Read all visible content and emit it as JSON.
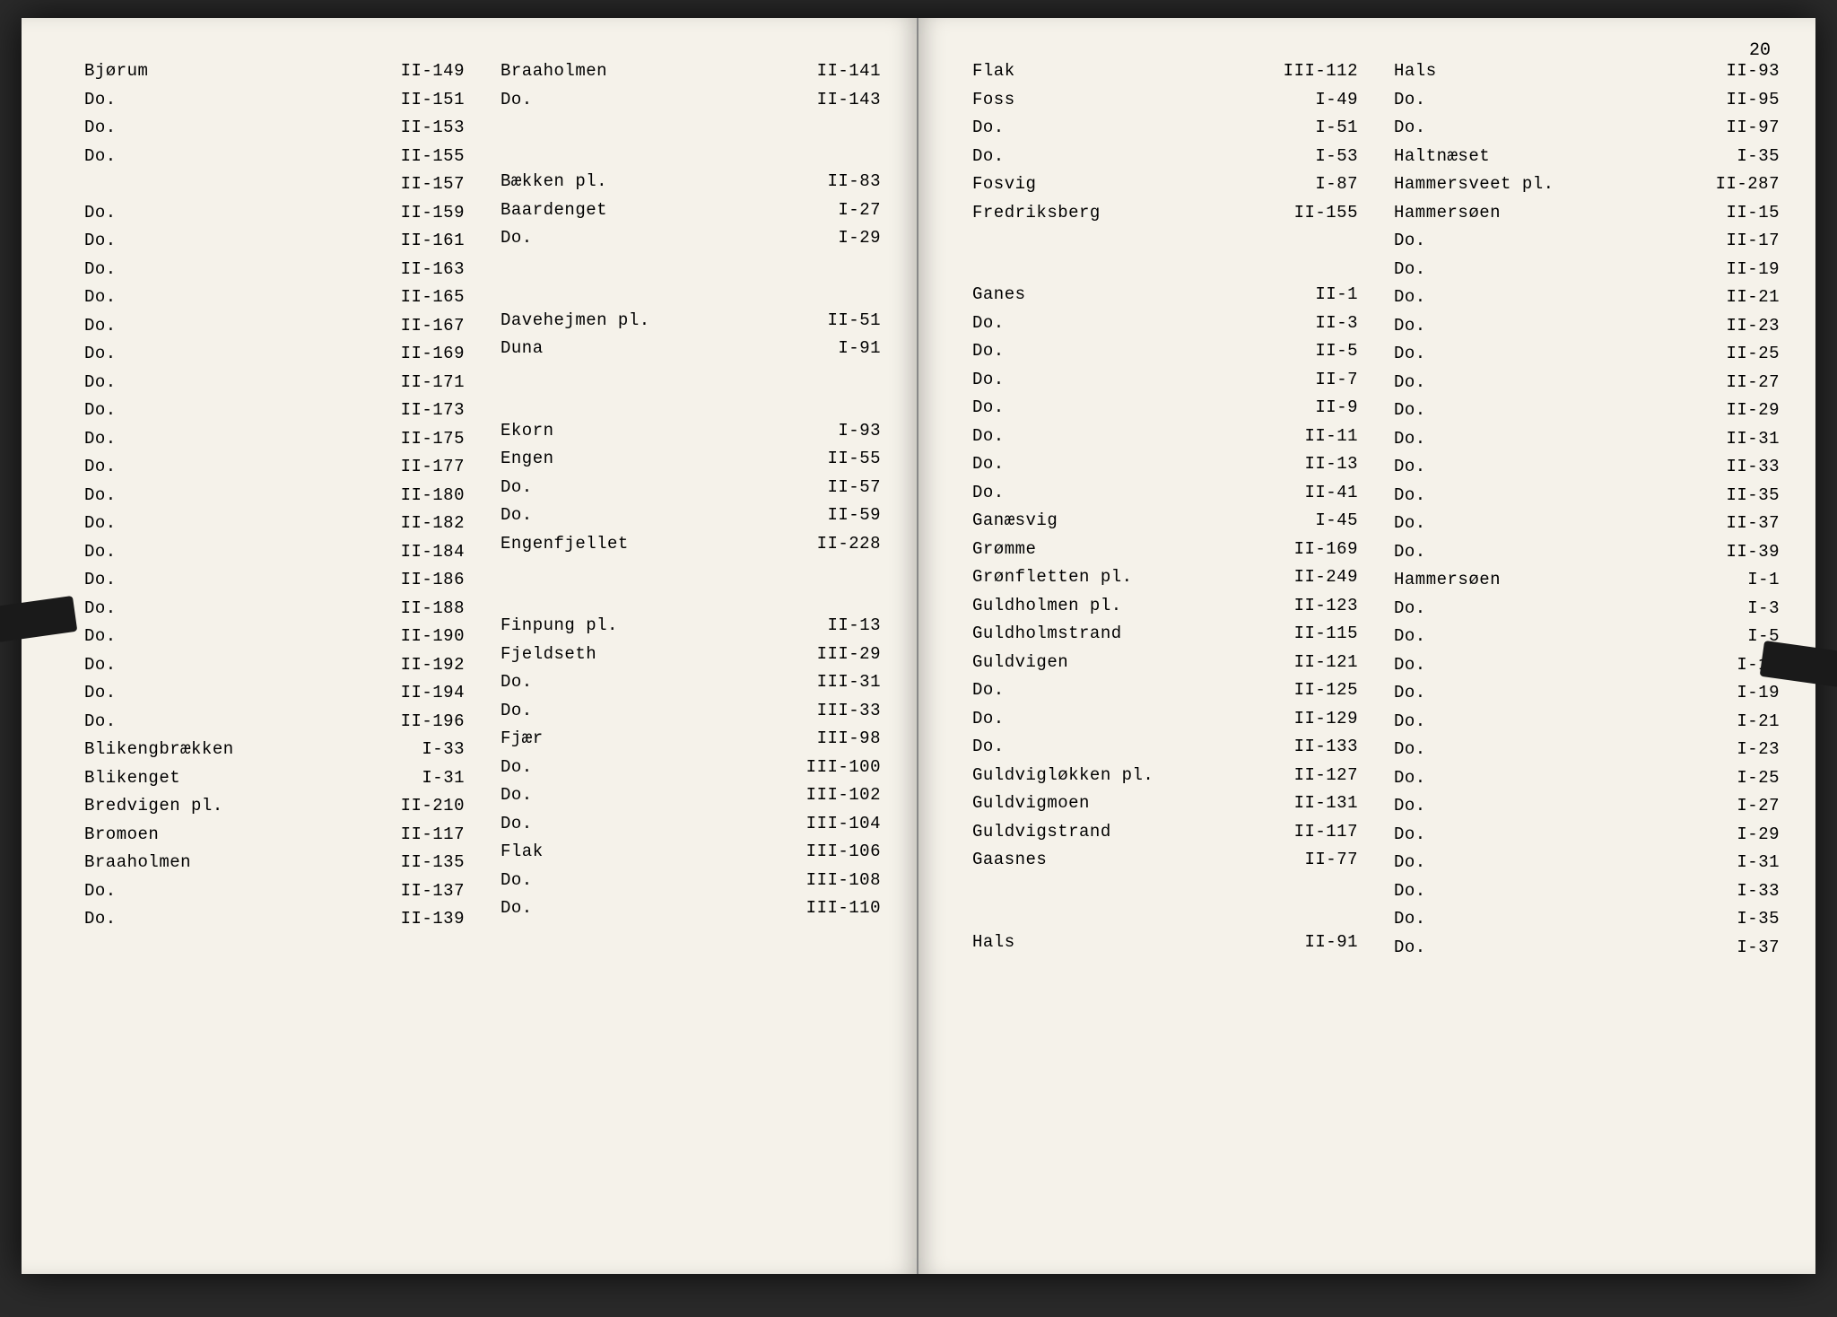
{
  "page_number": "20",
  "font_family": "Courier New",
  "background_color": "#f5f2ea",
  "text_color": "#222222",
  "left_page": {
    "col1": [
      {
        "name": "Bjørum",
        "ref": "II-149"
      },
      {
        "name": "Do.",
        "ref": "II-151"
      },
      {
        "name": "Do.",
        "ref": "II-153"
      },
      {
        "name": "Do.",
        "ref": "II-155"
      },
      {
        "name": "",
        "ref": "II-157"
      },
      {
        "name": "Do.",
        "ref": "II-159"
      },
      {
        "name": "Do.",
        "ref": "II-161"
      },
      {
        "name": "Do.",
        "ref": "II-163"
      },
      {
        "name": "Do.",
        "ref": "II-165"
      },
      {
        "name": "Do.",
        "ref": "II-167"
      },
      {
        "name": "Do.",
        "ref": "II-169"
      },
      {
        "name": "Do.",
        "ref": "II-171"
      },
      {
        "name": "Do.",
        "ref": "II-173"
      },
      {
        "name": "Do.",
        "ref": "II-175"
      },
      {
        "name": "Do.",
        "ref": "II-177"
      },
      {
        "name": "Do.",
        "ref": "II-180"
      },
      {
        "name": "Do.",
        "ref": "II-182"
      },
      {
        "name": "Do.",
        "ref": "II-184"
      },
      {
        "name": "Do.",
        "ref": "II-186"
      },
      {
        "name": "Do.",
        "ref": "II-188"
      },
      {
        "name": "Do.",
        "ref": "II-190"
      },
      {
        "name": "Do.",
        "ref": "II-192"
      },
      {
        "name": "Do.",
        "ref": "II-194"
      },
      {
        "name": "Do.",
        "ref": "II-196"
      },
      {
        "name": "Blikengbrækken",
        "ref": "I-33"
      },
      {
        "name": "Blikenget",
        "ref": "I-31"
      },
      {
        "name": "Bredvigen pl.",
        "ref": "II-210"
      },
      {
        "name": "Bromoen",
        "ref": "II-117"
      },
      {
        "name": "Braaholmen",
        "ref": "II-135"
      },
      {
        "name": "Do.",
        "ref": "II-137"
      },
      {
        "name": "Do.",
        "ref": "II-139"
      }
    ],
    "col2": [
      {
        "name": "Braaholmen",
        "ref": "II-141"
      },
      {
        "name": "Do.",
        "ref": "II-143"
      },
      {
        "spacer": true
      },
      {
        "spacer": true
      },
      {
        "name": "Bækken pl.",
        "ref": "II-83"
      },
      {
        "name": "Baardenget",
        "ref": "I-27"
      },
      {
        "name": "Do.",
        "ref": "I-29"
      },
      {
        "spacer": true
      },
      {
        "spacer": true
      },
      {
        "name": "Davehejmen pl.",
        "ref": "II-51"
      },
      {
        "name": "Duna",
        "ref": "I-91"
      },
      {
        "spacer": true
      },
      {
        "spacer": true
      },
      {
        "name": "Ekorn",
        "ref": "I-93"
      },
      {
        "name": "Engen",
        "ref": "II-55"
      },
      {
        "name": "Do.",
        "ref": "II-57"
      },
      {
        "name": "Do.",
        "ref": "II-59"
      },
      {
        "name": "Engenfjellet",
        "ref": "II-228"
      },
      {
        "spacer": true
      },
      {
        "spacer": true
      },
      {
        "name": "Finpung pl.",
        "ref": "II-13"
      },
      {
        "name": "Fjeldseth",
        "ref": "III-29"
      },
      {
        "name": "Do.",
        "ref": "III-31"
      },
      {
        "name": "Do.",
        "ref": "III-33"
      },
      {
        "name": "Fjær",
        "ref": "III-98"
      },
      {
        "name": "Do.",
        "ref": "III-100"
      },
      {
        "name": "Do.",
        "ref": "III-102"
      },
      {
        "name": "Do.",
        "ref": "III-104"
      },
      {
        "name": "Flak",
        "ref": "III-106"
      },
      {
        "name": "Do.",
        "ref": "III-108"
      },
      {
        "name": "Do.",
        "ref": "III-110"
      }
    ]
  },
  "right_page": {
    "col1": [
      {
        "name": "Flak",
        "ref": "III-112"
      },
      {
        "name": "Foss",
        "ref": "I-49"
      },
      {
        "name": "Do.",
        "ref": "I-51"
      },
      {
        "name": "Do.",
        "ref": "I-53"
      },
      {
        "name": "Fosvig",
        "ref": "I-87"
      },
      {
        "name": "Fredriksberg",
        "ref": "II-155"
      },
      {
        "spacer": true
      },
      {
        "spacer": true
      },
      {
        "name": "Ganes",
        "ref": "II-1"
      },
      {
        "name": "Do.",
        "ref": "II-3"
      },
      {
        "name": "Do.",
        "ref": "II-5"
      },
      {
        "name": "Do.",
        "ref": "II-7"
      },
      {
        "name": "Do.",
        "ref": "II-9"
      },
      {
        "name": "Do.",
        "ref": "II-11"
      },
      {
        "name": "Do.",
        "ref": "II-13"
      },
      {
        "name": "Do.",
        "ref": "II-41"
      },
      {
        "name": "Ganæsvig",
        "ref": "I-45"
      },
      {
        "name": "Grømme",
        "ref": "II-169"
      },
      {
        "name": "Grønfletten pl.",
        "ref": "II-249"
      },
      {
        "name": "Guldholmen pl.",
        "ref": "II-123"
      },
      {
        "name": "Guldholmstrand",
        "ref": "II-115"
      },
      {
        "name": "Guldvigen",
        "ref": "II-121"
      },
      {
        "name": "Do.",
        "ref": "II-125"
      },
      {
        "name": "Do.",
        "ref": "II-129"
      },
      {
        "name": "Do.",
        "ref": "II-133"
      },
      {
        "name": "Guldvigløkken pl.",
        "ref": "II-127"
      },
      {
        "name": "Guldvigmoen",
        "ref": "II-131"
      },
      {
        "name": "Guldvigstrand",
        "ref": "II-117"
      },
      {
        "name": "Gaasnes",
        "ref": "II-77"
      },
      {
        "spacer": true
      },
      {
        "spacer": true
      },
      {
        "name": "Hals",
        "ref": "II-91"
      }
    ],
    "col2": [
      {
        "name": "Hals",
        "ref": "II-93"
      },
      {
        "name": "Do.",
        "ref": "II-95"
      },
      {
        "name": "Do.",
        "ref": "II-97"
      },
      {
        "name": "Haltnæset",
        "ref": "I-35"
      },
      {
        "name": "Hammersveet pl.",
        "ref": "II-287"
      },
      {
        "name": "Hammersøen",
        "ref": "II-15"
      },
      {
        "name": "Do.",
        "ref": "II-17"
      },
      {
        "name": "Do.",
        "ref": "II-19"
      },
      {
        "name": "Do.",
        "ref": "II-21"
      },
      {
        "name": "Do.",
        "ref": "II-23"
      },
      {
        "name": "Do.",
        "ref": "II-25"
      },
      {
        "name": "Do.",
        "ref": "II-27"
      },
      {
        "name": "Do.",
        "ref": "II-29"
      },
      {
        "name": "Do.",
        "ref": "II-31"
      },
      {
        "name": "Do.",
        "ref": "II-33"
      },
      {
        "name": "Do.",
        "ref": "II-35"
      },
      {
        "name": "Do.",
        "ref": "II-37"
      },
      {
        "name": "Do.",
        "ref": "II-39"
      },
      {
        "name": "Hammersøen",
        "ref": "I-1"
      },
      {
        "name": "Do.",
        "ref": "I-3"
      },
      {
        "name": "Do.",
        "ref": "I-5"
      },
      {
        "name": "Do.",
        "ref": "I-17"
      },
      {
        "name": "Do.",
        "ref": "I-19"
      },
      {
        "name": "Do.",
        "ref": "I-21"
      },
      {
        "name": "Do.",
        "ref": "I-23"
      },
      {
        "name": "Do.",
        "ref": "I-25"
      },
      {
        "name": "Do.",
        "ref": "I-27"
      },
      {
        "name": "Do.",
        "ref": "I-29"
      },
      {
        "name": "Do.",
        "ref": "I-31"
      },
      {
        "name": "Do.",
        "ref": "I-33"
      },
      {
        "name": "Do.",
        "ref": "I-35"
      },
      {
        "name": "Do.",
        "ref": "I-37"
      }
    ]
  }
}
